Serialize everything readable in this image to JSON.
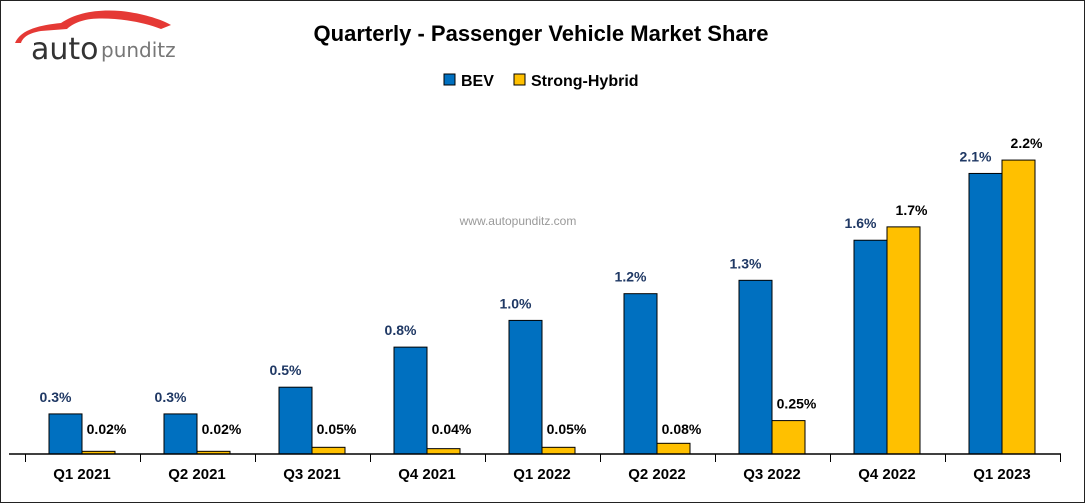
{
  "logo": {
    "text_main": "auto",
    "text_sub": "punditz"
  },
  "watermark": "www.autopunditz.com",
  "chart_data": {
    "type": "bar",
    "title": "Quarterly - Passenger Vehicle Market Share",
    "categories": [
      "Q1 2021",
      "Q2 2021",
      "Q3 2021",
      "Q4 2021",
      "Q1 2022",
      "Q2 2022",
      "Q3 2022",
      "Q4 2022",
      "Q1 2023"
    ],
    "series": [
      {
        "name": "BEV",
        "color": "#0070C0",
        "values": [
          0.3,
          0.3,
          0.5,
          0.8,
          1.0,
          1.2,
          1.3,
          1.6,
          2.1
        ],
        "labels": [
          "0.3%",
          "0.3%",
          "0.5%",
          "0.8%",
          "1.0%",
          "1.2%",
          "1.3%",
          "1.6%",
          "2.1%"
        ]
      },
      {
        "name": "Strong-Hybrid",
        "color": "#FFC000",
        "values": [
          0.02,
          0.02,
          0.05,
          0.04,
          0.05,
          0.08,
          0.25,
          1.7,
          2.2
        ],
        "labels": [
          "0.02%",
          "0.02%",
          "0.05%",
          "0.04%",
          "0.05%",
          "0.08%",
          "0.25%",
          "1.7%",
          "2.2%"
        ]
      }
    ],
    "legend_position": "top",
    "grid": false,
    "ylim": [
      0,
      2.5
    ],
    "xlabel": "",
    "ylabel": ""
  }
}
